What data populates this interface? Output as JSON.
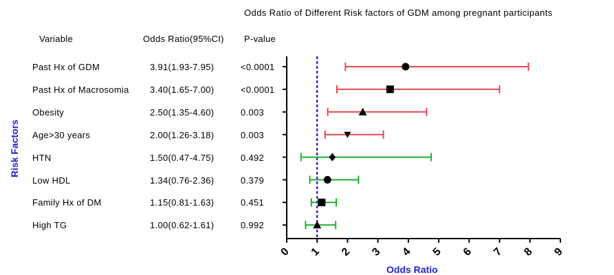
{
  "chart_data": {
    "type": "forest",
    "title": "Odds Ratio of Different Risk factors of GDM among pregnant participants",
    "xlabel": "Odds Ratio",
    "ylabel": "Risk Factors",
    "xlim": [
      0,
      9
    ],
    "xticks": [
      "0",
      "1",
      "2",
      "3",
      "4",
      "5",
      "6",
      "7",
      "8",
      "9"
    ],
    "reference_line": 1,
    "columns": [
      "Variable",
      "Odds Ratio(95%CI)",
      "P-value"
    ],
    "rows": [
      {
        "variable": "Past Hx of GDM",
        "or_text": "3.91(1.93-7.95)",
        "p": "<0.0001",
        "or": 3.91,
        "lo": 1.93,
        "hi": 7.95,
        "marker": "circle",
        "color": "#e8474a"
      },
      {
        "variable": "Past Hx of Macrosomia",
        "or_text": "3.40(1.65-7.00)",
        "p": "<0.0001",
        "or": 3.4,
        "lo": 1.65,
        "hi": 7.0,
        "marker": "square",
        "color": "#e8474a"
      },
      {
        "variable": "Obesity",
        "or_text": "2.50(1.35-4.60)",
        "p": "0.003",
        "or": 2.5,
        "lo": 1.35,
        "hi": 4.6,
        "marker": "triangle-up",
        "color": "#e8474a"
      },
      {
        "variable": "Age>30 years",
        "or_text": "2.00(1.26-3.18)",
        "p": "0.003",
        "or": 2.0,
        "lo": 1.26,
        "hi": 3.18,
        "marker": "triangle-down",
        "color": "#e8474a"
      },
      {
        "variable": "HTN",
        "or_text": "1.50(0.47-4.75)",
        "p": "0.492",
        "or": 1.5,
        "lo": 0.47,
        "hi": 4.75,
        "marker": "diamond",
        "color": "#1fae2c"
      },
      {
        "variable": "Low HDL",
        "or_text": "1.34(0.76-2.36)",
        "p": "0.379",
        "or": 1.34,
        "lo": 0.76,
        "hi": 2.36,
        "marker": "circle",
        "color": "#1fae2c"
      },
      {
        "variable": "Family Hx of DM",
        "or_text": "1.15(0.81-1.63)",
        "p": "0.451",
        "or": 1.15,
        "lo": 0.81,
        "hi": 1.63,
        "marker": "square",
        "color": "#1fae2c"
      },
      {
        "variable": "High TG",
        "or_text": "1.00(0.62-1.61)",
        "p": "0.992",
        "or": 1.0,
        "lo": 0.62,
        "hi": 1.61,
        "marker": "triangle-up",
        "color": "#1fae2c"
      }
    ],
    "colors": {
      "significant": "#e8474a",
      "non_significant": "#1fae2c",
      "reference_line": "#1a1acc",
      "axis_label": "#2222cc"
    }
  }
}
